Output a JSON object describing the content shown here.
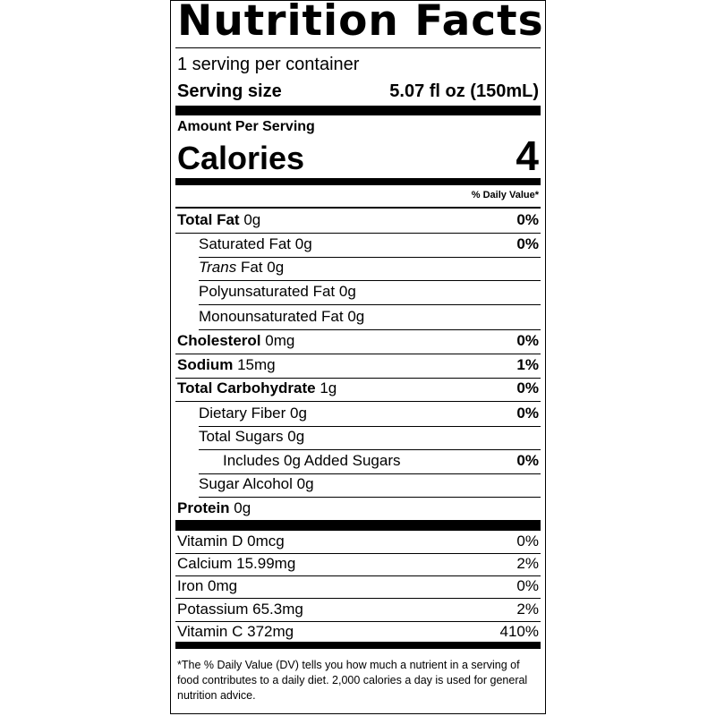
{
  "title": "Nutrition Facts",
  "servings": "1 serving per container",
  "serving_size": {
    "label": "Serving size",
    "value": "5.07 fl oz (150mL)"
  },
  "amount_per_serving": "Amount Per Serving",
  "calories": {
    "label": "Calories",
    "value": "4"
  },
  "dv_header": "% Daily Value*",
  "nutrients": [
    {
      "name": "Total Fat",
      "amount": "0g",
      "dv": "0%"
    },
    {
      "name": "Saturated Fat",
      "amount": "0g",
      "dv": "0%"
    },
    {
      "name": {
        "italic": "Trans",
        "text": "Fat"
      },
      "amount": "0g"
    },
    {
      "name": "Polyunsaturated Fat",
      "amount": "0g"
    },
    {
      "name": "Monounsaturated Fat",
      "amount": "0g"
    },
    {
      "name": "Cholesterol",
      "amount": "0mg",
      "dv": "0%"
    },
    {
      "name": "Sodium",
      "amount": "15mg",
      "dv": "1%"
    },
    {
      "name": "Total Carbohydrate",
      "amount": "1g",
      "dv": "0%"
    },
    {
      "name": "Dietary Fiber",
      "amount": "0g",
      "dv": "0%"
    },
    {
      "name": "Total Sugars",
      "amount": "0g"
    },
    {
      "name": "Includes 0g Added Sugars",
      "dv": "0%"
    },
    {
      "name": "Sugar Alcohol",
      "amount": "0g"
    },
    {
      "name": "Protein",
      "amount": "0g"
    }
  ],
  "vitamins": [
    {
      "name": "Vitamin D",
      "amount": "0mcg",
      "dv": "0%"
    },
    {
      "name": "Calcium",
      "amount": "15.99mg",
      "dv": "2%"
    },
    {
      "name": "Iron",
      "amount": "0mg",
      "dv": "0%"
    },
    {
      "name": "Potassium",
      "amount": "65.3mg",
      "dv": "2%"
    },
    {
      "name": "Vitamin C",
      "amount": "372mg",
      "dv": "410%"
    }
  ],
  "footnote": "*The % Daily Value (DV) tells you how much a nutrient in a serving of food contributes to a daily diet. 2,000 calories a day is used for general nutrition advice."
}
